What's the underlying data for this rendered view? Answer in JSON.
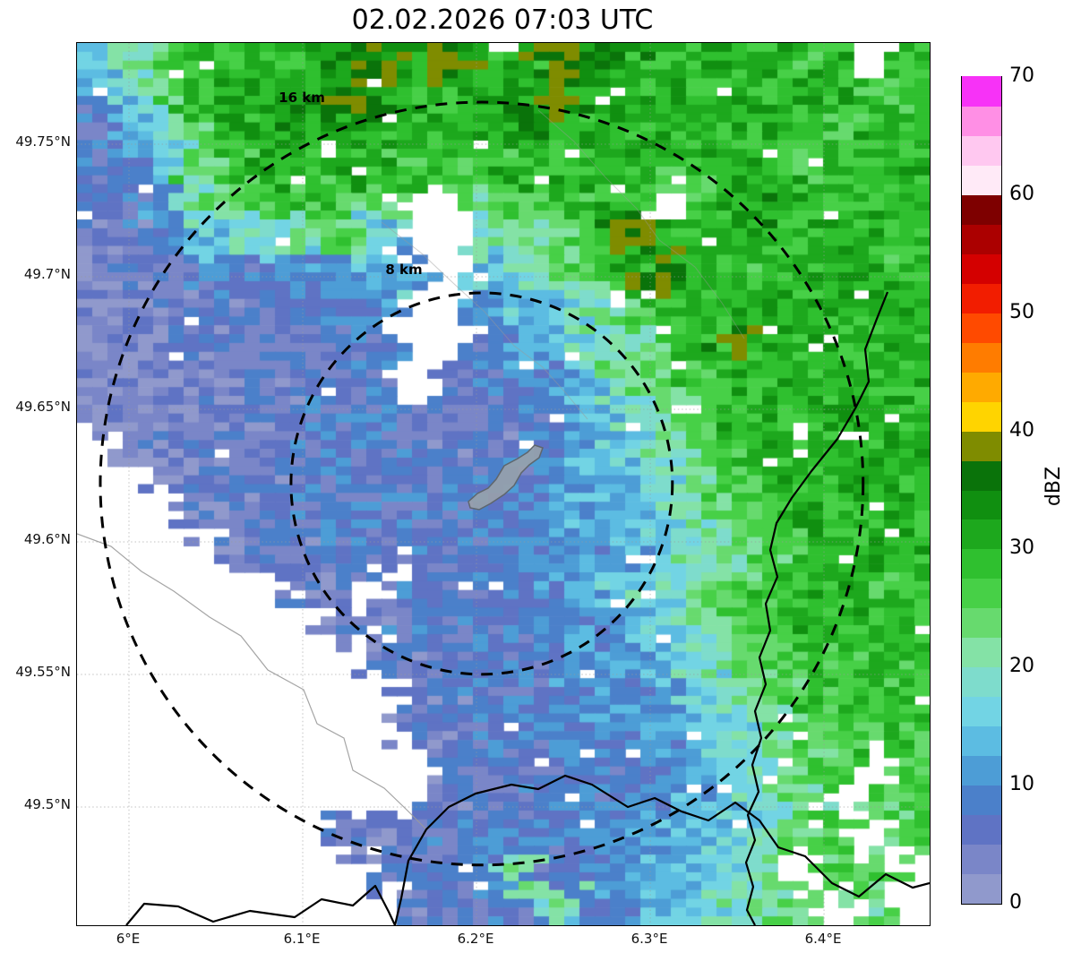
{
  "title": "02.02.2026 07:03 UTC",
  "axes": {
    "lat_ticks": [
      {
        "value": 49.75,
        "label": "49.75°N"
      },
      {
        "value": 49.7,
        "label": "49.7°N"
      },
      {
        "value": 49.65,
        "label": "49.65°N"
      },
      {
        "value": 49.6,
        "label": "49.6°N"
      },
      {
        "value": 49.55,
        "label": "49.55°N"
      },
      {
        "value": 49.5,
        "label": "49.5°N"
      }
    ],
    "lon_ticks": [
      {
        "value": 6.0,
        "label": "6°E"
      },
      {
        "value": 6.1,
        "label": "6.1°E"
      },
      {
        "value": 6.2,
        "label": "6.2°E"
      },
      {
        "value": 6.3,
        "label": "6.3°E"
      },
      {
        "value": 6.4,
        "label": "6.4°E"
      }
    ]
  },
  "range_rings": [
    {
      "label": "16 km",
      "radius_km": 16
    },
    {
      "label": "8 km",
      "radius_km": 8
    }
  ],
  "colorbar": {
    "label": "dBZ",
    "ticks": [
      0,
      10,
      20,
      30,
      40,
      50,
      60,
      70
    ]
  },
  "chart_data": {
    "type": "heatmap",
    "title": "02.02.2026 07:03 UTC",
    "units": "dBZ",
    "lon_range": [
      5.9701,
      6.4608
    ],
    "lat_range": [
      49.4554,
      49.7882
    ],
    "radar_center": {
      "lon": 6.203,
      "lat": 49.622
    },
    "range_rings_km": [
      8,
      16
    ],
    "no_data": -1,
    "colormap": {
      "breaks": [
        0,
        2.5,
        5,
        7.5,
        10,
        12.5,
        15,
        17.5,
        20,
        22.5,
        25,
        27.5,
        30,
        32.5,
        35,
        37.5,
        40,
        42.5,
        45,
        47.5,
        50,
        52.5,
        55,
        57.5,
        60,
        62.5,
        65,
        67.5,
        70
      ],
      "colors": [
        "#9099cc",
        "#7a86c8",
        "#5f73c4",
        "#4b80ca",
        "#4d9dd6",
        "#5cbce2",
        "#72d4e4",
        "#7edccc",
        "#84e2a6",
        "#67da6e",
        "#47d047",
        "#2fc02f",
        "#1da81d",
        "#108f10",
        "#0a730a",
        "#7f8c00",
        "#ffd400",
        "#ffaa00",
        "#ff7c00",
        "#ff4a00",
        "#f21d00",
        "#d40000",
        "#ab0000",
        "#7e0000",
        "#ffeaf7",
        "#ffc8f0",
        "#ff8fe5",
        "#f732f7"
      ]
    },
    "grid": {
      "cols": 24,
      "rows": 25,
      "values": [
        [
          14,
          20,
          26,
          28,
          30,
          28,
          30,
          33,
          38,
          31,
          38,
          30,
          31,
          38,
          34,
          33,
          30,
          29,
          31,
          30,
          28,
          30,
          -1,
          29
        ],
        [
          10,
          16,
          24,
          29,
          31,
          30,
          32,
          38,
          33,
          30,
          29,
          31,
          33,
          38,
          31,
          30,
          31,
          29,
          30,
          28,
          30,
          29,
          28,
          27
        ],
        [
          8,
          12,
          18,
          26,
          30,
          32,
          31,
          30,
          32,
          30,
          28,
          30,
          32,
          31,
          30,
          29,
          31,
          30,
          29,
          31,
          29,
          28,
          30,
          29
        ],
        [
          8,
          10,
          16,
          24,
          28,
          30,
          29,
          31,
          30,
          28,
          26,
          28,
          30,
          29,
          31,
          30,
          28,
          29,
          30,
          28,
          27,
          29,
          28,
          30
        ],
        [
          6,
          8,
          12,
          20,
          26,
          28,
          28,
          26,
          24,
          -1,
          -1,
          22,
          26,
          28,
          30,
          29,
          -1,
          28,
          30,
          32,
          30,
          28,
          29,
          31
        ],
        [
          5,
          6,
          10,
          14,
          18,
          20,
          22,
          24,
          16,
          -1,
          -1,
          18,
          22,
          24,
          27,
          38,
          30,
          28,
          31,
          30,
          29,
          31,
          30,
          28
        ],
        [
          4,
          5,
          6,
          8,
          8,
          8,
          10,
          12,
          14,
          12,
          -1,
          14,
          18,
          22,
          26,
          30,
          38,
          30,
          29,
          28,
          30,
          31,
          29,
          30
        ],
        [
          3,
          4,
          5,
          6,
          6,
          7,
          8,
          8,
          10,
          -1,
          -1,
          10,
          14,
          16,
          20,
          24,
          28,
          29,
          30,
          31,
          30,
          29,
          31,
          30
        ],
        [
          3,
          3,
          4,
          5,
          6,
          6,
          7,
          8,
          8,
          -1,
          -1,
          8,
          12,
          14,
          18,
          22,
          26,
          29,
          38,
          31,
          30,
          29,
          30,
          31
        ],
        [
          2,
          3,
          3,
          4,
          5,
          6,
          6,
          7,
          8,
          -1,
          6,
          8,
          10,
          10,
          16,
          20,
          24,
          28,
          30,
          29,
          31,
          30,
          29,
          30
        ],
        [
          2,
          3,
          4,
          4,
          5,
          6,
          7,
          7,
          8,
          6,
          5,
          6,
          8,
          10,
          14,
          18,
          22,
          26,
          29,
          30,
          29,
          31,
          30,
          29
        ],
        [
          -1,
          3,
          4,
          5,
          5,
          6,
          7,
          8,
          8,
          7,
          6,
          6,
          8,
          10,
          12,
          16,
          20,
          24,
          28,
          30,
          29,
          30,
          31,
          30
        ],
        [
          -1,
          -1,
          4,
          5,
          6,
          6,
          7,
          8,
          8,
          7,
          7,
          8,
          8,
          10,
          12,
          14,
          18,
          22,
          26,
          29,
          30,
          29,
          30,
          29
        ],
        [
          -1,
          -1,
          -1,
          4,
          5,
          6,
          7,
          7,
          8,
          8,
          7,
          8,
          9,
          10,
          12,
          14,
          16,
          20,
          24,
          28,
          30,
          31,
          29,
          30
        ],
        [
          -1,
          -1,
          -1,
          -1,
          4,
          5,
          6,
          7,
          7,
          8,
          7,
          8,
          8,
          9,
          10,
          12,
          16,
          20,
          22,
          26,
          30,
          29,
          31,
          30
        ],
        [
          -1,
          -1,
          -1,
          -1,
          -1,
          -1,
          5,
          6,
          -1,
          7,
          8,
          8,
          9,
          10,
          12,
          14,
          18,
          22,
          26,
          28,
          29,
          30,
          28,
          29
        ],
        [
          -1,
          -1,
          -1,
          -1,
          -1,
          -1,
          -1,
          5,
          6,
          7,
          7,
          8,
          8,
          9,
          10,
          12,
          16,
          20,
          24,
          27,
          29,
          28,
          30,
          29
        ],
        [
          -1,
          -1,
          -1,
          -1,
          -1,
          -1,
          -1,
          -1,
          5,
          6,
          7,
          8,
          8,
          9,
          10,
          12,
          14,
          18,
          22,
          26,
          28,
          27,
          29,
          28
        ],
        [
          -1,
          -1,
          -1,
          -1,
          -1,
          -1,
          -1,
          -1,
          -1,
          5,
          6,
          7,
          8,
          8,
          9,
          10,
          12,
          16,
          20,
          24,
          27,
          29,
          28,
          27
        ],
        [
          -1,
          -1,
          -1,
          -1,
          -1,
          -1,
          -1,
          -1,
          -1,
          5,
          6,
          7,
          7,
          8,
          9,
          10,
          12,
          14,
          18,
          22,
          26,
          28,
          27,
          28
        ],
        [
          -1,
          -1,
          -1,
          -1,
          -1,
          -1,
          -1,
          -1,
          -1,
          -1,
          6,
          7,
          7,
          8,
          8,
          9,
          10,
          12,
          16,
          20,
          24,
          26,
          -1,
          27
        ],
        [
          -1,
          -1,
          -1,
          -1,
          -1,
          -1,
          -1,
          -1,
          -1,
          -1,
          6,
          6,
          7,
          8,
          8,
          9,
          10,
          12,
          14,
          18,
          22,
          -1,
          26,
          25
        ],
        [
          -1,
          -1,
          -1,
          -1,
          -1,
          -1,
          -1,
          6,
          5,
          6,
          7,
          7,
          8,
          8,
          9,
          10,
          12,
          14,
          16,
          20,
          24,
          26,
          -1,
          24
        ],
        [
          -1,
          -1,
          -1,
          -1,
          -1,
          -1,
          -1,
          -1,
          6,
          6,
          7,
          8,
          20,
          8,
          9,
          10,
          12,
          14,
          18,
          22,
          -1,
          25,
          24,
          -1
        ],
        [
          -1,
          -1,
          -1,
          -1,
          -1,
          -1,
          -1,
          -1,
          -1,
          6,
          6,
          7,
          8,
          20,
          9,
          10,
          12,
          16,
          20,
          22,
          24,
          -1,
          23,
          -1
        ]
      ]
    }
  }
}
